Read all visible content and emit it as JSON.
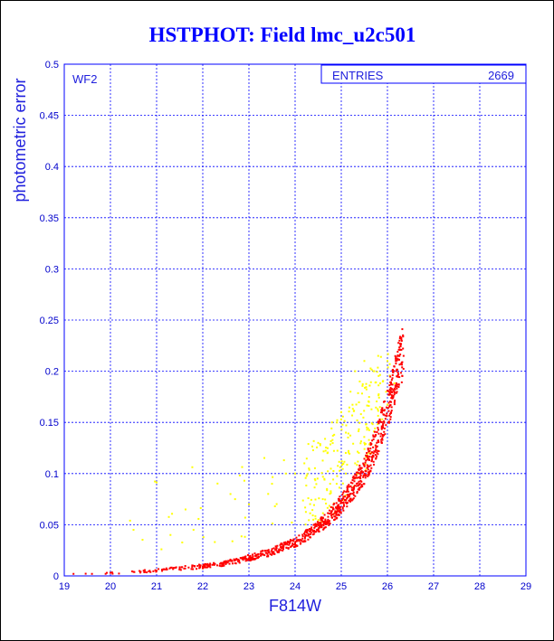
{
  "chart_data": {
    "type": "scatter",
    "title": "HSTPHOT: Field lmc_u2c501",
    "xlabel": "F814W",
    "ylabel": "photometric error",
    "xlim": [
      19,
      29
    ],
    "ylim": [
      0,
      0.5
    ],
    "xticks": [
      "19",
      "20",
      "21",
      "22",
      "23",
      "24",
      "25",
      "26",
      "27",
      "28",
      "29"
    ],
    "yticks": [
      "0",
      "0.05",
      "0.1",
      "0.15",
      "0.2",
      "0.25",
      "0.3",
      "0.35",
      "0.4",
      "0.45",
      "0.5"
    ],
    "grid": true,
    "panel_label": "WF2",
    "stats_box": {
      "label": "ENTRIES",
      "value": "2669"
    },
    "series": [
      {
        "color": "#ff0000",
        "description_points": [
          [
            19.2,
            0.002
          ],
          [
            19.6,
            0.002
          ],
          [
            20.0,
            0.003
          ],
          [
            20.5,
            0.004
          ],
          [
            21.0,
            0.005
          ],
          [
            21.5,
            0.007
          ],
          [
            22.0,
            0.009
          ],
          [
            22.5,
            0.012
          ],
          [
            23.0,
            0.017
          ],
          [
            23.5,
            0.023
          ],
          [
            24.0,
            0.032
          ],
          [
            24.3,
            0.04
          ],
          [
            24.6,
            0.05
          ],
          [
            24.9,
            0.063
          ],
          [
            25.2,
            0.08
          ],
          [
            25.5,
            0.1
          ],
          [
            25.7,
            0.12
          ],
          [
            25.9,
            0.145
          ],
          [
            26.1,
            0.175
          ],
          [
            26.2,
            0.195
          ],
          [
            26.35,
            0.215
          ]
        ]
      },
      {
        "color": "#ffff00",
        "description_points": [
          [
            20.5,
            0.045
          ],
          [
            21.3,
            0.04
          ],
          [
            21.8,
            0.045
          ],
          [
            22.6,
            0.08
          ],
          [
            22.7,
            0.075
          ],
          [
            23.0,
            0.07
          ],
          [
            23.5,
            0.09
          ],
          [
            23.8,
            0.1
          ],
          [
            24.0,
            0.1
          ],
          [
            24.2,
            0.11
          ],
          [
            24.3,
            0.105
          ],
          [
            24.5,
            0.13
          ],
          [
            24.7,
            0.12
          ],
          [
            24.8,
            0.15
          ],
          [
            25.0,
            0.16
          ],
          [
            25.1,
            0.14
          ],
          [
            25.2,
            0.18
          ],
          [
            25.3,
            0.2
          ],
          [
            25.4,
            0.19
          ],
          [
            25.5,
            0.21
          ],
          [
            25.6,
            0.17
          ],
          [
            25.7,
            0.2
          ],
          [
            25.8,
            0.215
          ],
          [
            25.9,
            0.19
          ],
          [
            26.0,
            0.21
          ],
          [
            24.9,
            0.09
          ],
          [
            25.3,
            0.11
          ],
          [
            25.5,
            0.13
          ],
          [
            25.1,
            0.1
          ],
          [
            24.6,
            0.075
          ]
        ]
      }
    ]
  }
}
